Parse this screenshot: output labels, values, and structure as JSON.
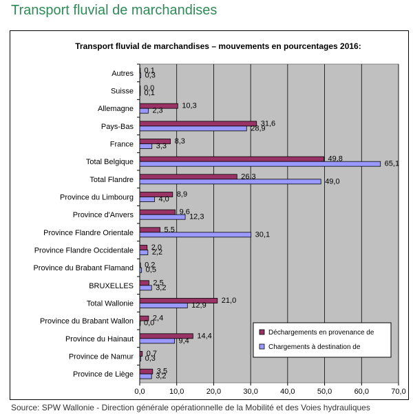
{
  "page": {
    "title": "Transport fluvial de marchandises",
    "source": "Source: SPW Wallonie - Direction générale opérationnelle de la Mobilité et des Voies hydrauliques"
  },
  "chart_data": {
    "type": "bar",
    "orientation": "horizontal",
    "title": "Transport fluvial de marchandises – mouvements en pourcentages 2016:",
    "xlabel": "",
    "ylabel": "",
    "xlim": [
      0,
      70
    ],
    "xticks": [
      "0,0",
      "10,0",
      "20,0",
      "30,0",
      "40,0",
      "50,0",
      "60,0",
      "70,0"
    ],
    "grid": true,
    "legend_position": "bottom-right",
    "categories": [
      "Autres",
      "Suisse",
      "Allemagne",
      "Pays-Bas",
      "France",
      "Total Belgique",
      "Total Flandre",
      "Province du Limbourg",
      "Province d'Anvers",
      "Province Flandre Orientale",
      "Province Flandre Occidentale",
      "Province du Brabant Flamand",
      "BRUXELLES",
      "Total Wallonie",
      "Province du Brabant Wallon",
      "Province du Hainaut",
      "Province de Namur",
      "Province de Liège"
    ],
    "series": [
      {
        "name": "Déchargements en provenance de",
        "color": "#993366",
        "values": [
          0.1,
          0.0,
          10.3,
          31.6,
          8.3,
          49.8,
          26.3,
          8.9,
          9.6,
          5.5,
          2.0,
          0.2,
          2.5,
          21.0,
          2.4,
          14.4,
          0.7,
          3.5
        ],
        "labels": [
          "0,1",
          "0,0",
          "10,3",
          "31,6",
          "8,3",
          "49,8",
          "26,3",
          "8,9",
          "9,6",
          "5,5",
          "2,0",
          "0,2",
          "2,5",
          "21,0",
          "2,4",
          "14,4",
          "0,7",
          "3,5"
        ]
      },
      {
        "name": "Chargements à destination de",
        "color": "#9999ff",
        "values": [
          0.3,
          0.1,
          2.3,
          28.9,
          3.3,
          65.1,
          49.0,
          4.0,
          12.3,
          30.1,
          2.2,
          0.5,
          3.2,
          12.9,
          0.0,
          9.4,
          0.3,
          3.2
        ],
        "labels": [
          "0,3",
          "0,1",
          "2,3",
          "28,9",
          "3,3",
          "65,1",
          "49,0",
          "4,0",
          "12,3",
          "30,1",
          "2,2",
          "0,5",
          "3,2",
          "12,9",
          "0,0",
          "9,4",
          "0,3",
          "3,2"
        ]
      }
    ]
  }
}
